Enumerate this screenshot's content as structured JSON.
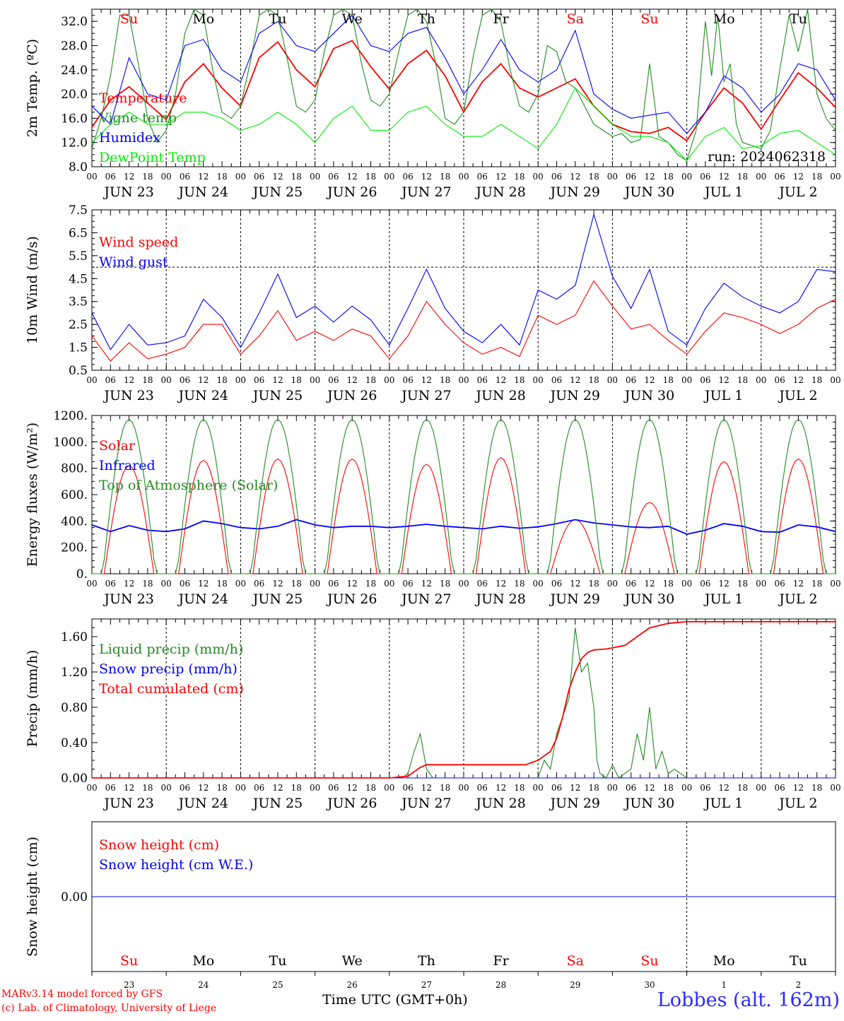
{
  "footer": {
    "model": "MARv3.14 model forced by GFS",
    "copyright": "(c) Lab. of Climatology, University of Liege",
    "time_label": "Time UTC (GMT+0h)",
    "station": "Lobbes (alt. 162m)"
  },
  "hour_ticks": [
    "00",
    "06",
    "12",
    "18"
  ],
  "date_labels": [
    "JUN 23",
    "JUN 24",
    "JUN 25",
    "JUN 26",
    "JUN 27",
    "JUN 28",
    "JUN 29",
    "JUN 30",
    "JUL  1",
    "JUL  2"
  ],
  "weekdays": [
    {
      "label": "Su",
      "color": "#ff0000"
    },
    {
      "label": "Mo",
      "color": "#000000"
    },
    {
      "label": "Tu",
      "color": "#000000"
    },
    {
      "label": "We",
      "color": "#000000"
    },
    {
      "label": "Th",
      "color": "#000000"
    },
    {
      "label": "Fr",
      "color": "#000000"
    },
    {
      "label": "Sa",
      "color": "#ff0000"
    },
    {
      "label": "Su",
      "color": "#ff0000"
    },
    {
      "label": "Mo",
      "color": "#000000"
    },
    {
      "label": "Tu",
      "color": "#000000"
    }
  ],
  "day_numbers": [
    "23",
    "24",
    "25",
    "26",
    "27",
    "28",
    "29",
    "30",
    "1",
    "2"
  ],
  "chart_data": [
    {
      "type": "line",
      "ylabel": "2m Temp. (ºC)",
      "ylim": [
        8,
        34
      ],
      "yticks": [
        "8.0",
        "12.0",
        "16.0",
        "20.0",
        "24.0",
        "28.0",
        "32.0"
      ],
      "run_label": "run: 2024062318",
      "x_unit": "hours since JUN 23 00 UTC",
      "series": [
        {
          "name": "Temperature",
          "color": "#ff0000",
          "x": [
            0,
            6,
            12,
            18,
            24,
            30,
            36,
            42,
            48,
            54,
            60,
            66,
            72,
            78,
            84,
            90,
            96,
            102,
            108,
            114,
            120,
            126,
            132,
            138,
            144,
            150,
            156,
            162,
            168,
            174,
            180,
            186,
            192,
            198,
            204,
            210,
            216,
            222,
            228,
            234,
            240
          ],
          "y": [
            14.5,
            19,
            21.2,
            18.5,
            15.8,
            22,
            25,
            21,
            18,
            26,
            28.6,
            24,
            21.2,
            27.5,
            28.8,
            24.5,
            20.8,
            25,
            27.2,
            23,
            17,
            22,
            25,
            21,
            19.5,
            21,
            22.5,
            18,
            15,
            13.8,
            13.5,
            14.5,
            12.3,
            17,
            21,
            18.5,
            14.2,
            19,
            23.5,
            21,
            17.8
          ]
        },
        {
          "name": "Vigne temp",
          "color": "#228b22",
          "x": [
            0,
            3,
            6,
            9,
            12,
            15,
            18,
            21,
            24,
            27,
            30,
            33,
            36,
            39,
            42,
            45,
            48,
            51,
            54,
            57,
            60,
            63,
            66,
            69,
            72,
            75,
            78,
            81,
            84,
            87,
            90,
            93,
            96,
            99,
            102,
            105,
            108,
            111,
            114,
            117,
            120,
            123,
            126,
            129,
            132,
            135,
            138,
            141,
            144,
            147,
            150,
            153,
            156,
            159,
            162,
            165,
            168,
            171,
            174,
            177,
            180,
            183,
            186,
            189,
            192,
            195,
            198,
            200,
            202,
            204,
            206,
            208,
            210,
            213,
            216,
            219,
            222,
            225,
            228,
            231,
            234,
            237,
            240
          ],
          "y": [
            11,
            16,
            23,
            33,
            33,
            25,
            16,
            12,
            14,
            20,
            30,
            34,
            33,
            24,
            17,
            16,
            18,
            25,
            33,
            34,
            33,
            26,
            18,
            17,
            19,
            27,
            33,
            34,
            33,
            25,
            19,
            18,
            20,
            27,
            33,
            34,
            32,
            25,
            16,
            15,
            17,
            26,
            33,
            34,
            32,
            24,
            18,
            17,
            20,
            28,
            27,
            22,
            21,
            18,
            15,
            14,
            13,
            13.5,
            12,
            12.5,
            25,
            13,
            12,
            10,
            9,
            14,
            32,
            23,
            33,
            22,
            25,
            15,
            12,
            11.5,
            11,
            14,
            24,
            33,
            27,
            34,
            20,
            16,
            14
          ]
        },
        {
          "name": "Humidex",
          "color": "#0000ff",
          "x": [
            0,
            6,
            12,
            18,
            24,
            30,
            36,
            42,
            48,
            54,
            60,
            66,
            72,
            78,
            84,
            90,
            96,
            102,
            108,
            114,
            120,
            126,
            132,
            138,
            144,
            150,
            156,
            162,
            168,
            174,
            180,
            186,
            192,
            198,
            204,
            210,
            216,
            222,
            228,
            234,
            240
          ],
          "y": [
            18,
            15,
            26,
            20,
            19,
            28,
            29,
            24,
            22,
            30,
            32,
            28,
            27,
            30,
            33,
            28,
            27,
            30,
            31,
            26,
            20,
            24,
            29,
            24,
            22,
            24,
            30.5,
            20,
            17.5,
            16,
            16.5,
            17,
            13.5,
            17,
            23,
            21,
            17,
            20,
            25,
            24,
            19
          ]
        },
        {
          "name": "DewPoint Temp",
          "color": "#00ee00",
          "x": [
            0,
            6,
            12,
            18,
            24,
            30,
            36,
            42,
            48,
            54,
            60,
            66,
            72,
            78,
            84,
            90,
            96,
            102,
            108,
            114,
            120,
            126,
            132,
            138,
            144,
            150,
            156,
            162,
            168,
            174,
            180,
            186,
            192,
            198,
            204,
            210,
            216,
            222,
            228,
            234,
            240
          ],
          "y": [
            12,
            15,
            17,
            15,
            15,
            17,
            17,
            16,
            14,
            15,
            17,
            15,
            12,
            16,
            18,
            14,
            14,
            17,
            18,
            15,
            13,
            13,
            15,
            13,
            11,
            15,
            21,
            18,
            15,
            13,
            13,
            12,
            9,
            13,
            14.5,
            11,
            11.5,
            13.5,
            14,
            12,
            10
          ]
        }
      ]
    },
    {
      "type": "line",
      "ylabel": "10m Wind (m/s)",
      "ylim": [
        0.5,
        7.5
      ],
      "yticks": [
        "0.5",
        "1.5",
        "2.5",
        "3.5",
        "4.5",
        "5.5",
        "6.5",
        "7.5"
      ],
      "threshold": 5.0,
      "series": [
        {
          "name": "Wind speed",
          "color": "#ff0000",
          "x": [
            0,
            6,
            12,
            18,
            24,
            30,
            36,
            42,
            48,
            54,
            60,
            66,
            72,
            78,
            84,
            90,
            96,
            102,
            108,
            114,
            120,
            126,
            132,
            138,
            144,
            150,
            156,
            162,
            168,
            174,
            180,
            186,
            192,
            198,
            204,
            210,
            216,
            222,
            228,
            234,
            240
          ],
          "y": [
            2.0,
            0.9,
            1.7,
            1.0,
            1.2,
            1.5,
            2.5,
            2.5,
            1.2,
            2.0,
            3.1,
            1.8,
            2.2,
            1.8,
            2.3,
            2.0,
            1.0,
            2.0,
            3.5,
            2.5,
            1.7,
            1.2,
            1.5,
            1.1,
            2.9,
            2.5,
            2.9,
            4.4,
            3.3,
            2.3,
            2.5,
            1.8,
            1.2,
            2.2,
            3.0,
            2.8,
            2.5,
            2.1,
            2.5,
            3.2,
            3.6
          ]
        },
        {
          "name": "Wind gust",
          "color": "#0000ff",
          "x": [
            0,
            6,
            12,
            18,
            24,
            30,
            36,
            42,
            48,
            54,
            60,
            66,
            72,
            78,
            84,
            90,
            96,
            102,
            108,
            114,
            120,
            126,
            132,
            138,
            144,
            150,
            156,
            162,
            168,
            174,
            180,
            186,
            192,
            198,
            204,
            210,
            216,
            222,
            228,
            234,
            240
          ],
          "y": [
            3.0,
            1.4,
            2.5,
            1.6,
            1.7,
            2.0,
            3.6,
            2.8,
            1.5,
            3.0,
            4.7,
            2.8,
            3.3,
            2.6,
            3.3,
            2.7,
            1.6,
            3.2,
            4.9,
            3.2,
            2.2,
            1.7,
            2.5,
            1.6,
            4.0,
            3.6,
            4.2,
            7.3,
            4.6,
            3.2,
            4.9,
            2.2,
            1.6,
            3.2,
            4.3,
            3.7,
            3.3,
            3.0,
            3.5,
            4.9,
            4.8
          ]
        }
      ]
    },
    {
      "type": "line",
      "ylabel": "Energy fluxes (W/m²)",
      "ylim": [
        0,
        1200
      ],
      "yticks": [
        "0.",
        "200.",
        "400.",
        "600.",
        "800.",
        "1000.",
        "1200."
      ],
      "series": [
        {
          "name": "Solar",
          "color": "#ff0000",
          "day_peaks": [
            820,
            860,
            870,
            870,
            830,
            880,
            410,
            540,
            850,
            870
          ]
        },
        {
          "name": "Infrared",
          "color": "#0000ff",
          "x": [
            0,
            6,
            12,
            18,
            24,
            30,
            36,
            42,
            48,
            54,
            60,
            66,
            72,
            78,
            84,
            90,
            96,
            102,
            108,
            114,
            120,
            126,
            132,
            138,
            144,
            150,
            156,
            162,
            168,
            174,
            180,
            186,
            192,
            198,
            204,
            210,
            216,
            222,
            228,
            234,
            240
          ],
          "y": [
            370,
            320,
            365,
            330,
            320,
            340,
            400,
            380,
            350,
            340,
            360,
            410,
            370,
            350,
            360,
            360,
            350,
            360,
            375,
            360,
            350,
            340,
            360,
            345,
            355,
            380,
            410,
            385,
            370,
            355,
            350,
            360,
            300,
            330,
            380,
            360,
            320,
            315,
            370,
            355,
            320
          ]
        },
        {
          "name": "Top of Atmosphere (Solar)",
          "color": "#228b22",
          "day_peak": 1170
        }
      ]
    },
    {
      "type": "line",
      "ylabel": "Precip (mm/h)",
      "ylim": [
        0,
        1.8
      ],
      "yticks": [
        "0.00",
        "0.40",
        "0.80",
        "1.20",
        "1.60"
      ],
      "series": [
        {
          "name": "Liquid precip (mm/h)",
          "color": "#228b22",
          "x": [
            0,
            96,
            100,
            102,
            104,
            106,
            108,
            110,
            112,
            114,
            140,
            144,
            146,
            148,
            150,
            152,
            154,
            156,
            158,
            160,
            162,
            163,
            164,
            166,
            168,
            170,
            172,
            174,
            176,
            178,
            180,
            182,
            184,
            186,
            188,
            190,
            192,
            196,
            240
          ],
          "y": [
            0,
            0,
            0,
            0.05,
            0.3,
            0.5,
            0.1,
            0,
            0,
            0,
            0,
            0,
            0.2,
            0.1,
            0.5,
            0.7,
            0.9,
            1.7,
            1.2,
            1.3,
            0.8,
            0.2,
            0.05,
            0,
            0.15,
            0,
            0.05,
            0.1,
            0.5,
            0.2,
            0.8,
            0.1,
            0.3,
            0.05,
            0.1,
            0.05,
            0,
            0,
            0
          ]
        },
        {
          "name": "Snow precip (mm/h)",
          "color": "#0000ff",
          "x": [
            0,
            240
          ],
          "y": [
            0,
            0
          ]
        },
        {
          "name": "Total cumulated (cm)",
          "color": "#ff0000",
          "x": [
            0,
            96,
            102,
            106,
            108,
            110,
            140,
            144,
            148,
            150,
            152,
            154,
            156,
            158,
            160,
            162,
            166,
            172,
            176,
            180,
            186,
            192,
            198,
            240
          ],
          "y": [
            0,
            0,
            0.02,
            0.12,
            0.15,
            0.15,
            0.15,
            0.2,
            0.3,
            0.45,
            0.7,
            1.0,
            1.2,
            1.35,
            1.42,
            1.45,
            1.46,
            1.5,
            1.6,
            1.7,
            1.75,
            1.77,
            1.77,
            1.77
          ]
        }
      ]
    },
    {
      "type": "line",
      "ylabel": "Snow height (cm)",
      "ylim": [
        -1,
        1
      ],
      "yticks": [
        "0.00"
      ],
      "series": [
        {
          "name": "Snow height (cm)",
          "color": "#ff0000",
          "x": [
            0,
            240
          ],
          "y": [
            0,
            0
          ]
        },
        {
          "name": "Snow height (cm W.E.)",
          "color": "#0000ff",
          "x": [
            0,
            240
          ],
          "y": [
            0,
            0
          ]
        }
      ]
    }
  ]
}
